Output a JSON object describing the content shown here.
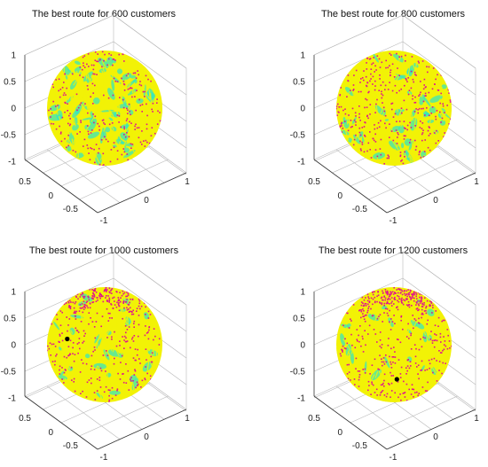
{
  "chart_data": [
    {
      "type": "scatter",
      "title": "The best route for 600 customers",
      "customers": 600,
      "colors": {
        "route": "#f2f206",
        "route_alt": "#2ee6c8",
        "customer": "#e0148e"
      },
      "axes": {
        "z_ticks": [
          "1",
          "0.5",
          "0",
          "-0.5",
          "-1"
        ],
        "y_ticks": [
          "0.5",
          "0",
          "-0.5"
        ],
        "x_ticks": [
          "1",
          "0",
          "-1"
        ]
      },
      "xlim": [
        -1,
        1
      ],
      "ylim": [
        -1,
        1
      ],
      "zlim": [
        -1,
        1
      ],
      "grid": true,
      "depot": null
    },
    {
      "type": "scatter",
      "title": "The best route for 800 customers",
      "customers": 800,
      "colors": {
        "route": "#f2f206",
        "route_alt": "#2ee6c8",
        "customer": "#e0148e"
      },
      "axes": {
        "z_ticks": [
          "1",
          "0.5",
          "0",
          "-0.5",
          "-1"
        ],
        "y_ticks": [
          "0.5",
          "0",
          "-0.5"
        ],
        "x_ticks": [
          "1",
          "0",
          "-1"
        ]
      },
      "xlim": [
        -1,
        1
      ],
      "ylim": [
        -1,
        1
      ],
      "zlim": [
        -1,
        1
      ],
      "grid": true,
      "depot": null
    },
    {
      "type": "scatter",
      "title": "The best route for 1000 customers",
      "customers": 1000,
      "colors": {
        "route": "#f2f206",
        "route_alt": "#2ee6c8",
        "customer": "#e0148e"
      },
      "axes": {
        "z_ticks": [
          "1",
          "0.5",
          "0",
          "-0.5",
          "-1"
        ],
        "y_ticks": [
          "0.5",
          "0",
          "-0.5"
        ],
        "x_ticks": [
          "1",
          "0",
          "-1"
        ]
      },
      "xlim": [
        -1,
        1
      ],
      "ylim": [
        -1,
        1
      ],
      "zlim": [
        -1,
        1
      ],
      "grid": true,
      "depot": {
        "u": -0.65,
        "v": 0.1,
        "color": "#000000"
      }
    },
    {
      "type": "scatter",
      "title": "The best route for 1200 customers",
      "customers": 1200,
      "colors": {
        "route": "#f2f206",
        "route_alt": "#2ee6c8",
        "customer": "#e0148e"
      },
      "axes": {
        "z_ticks": [
          "1",
          "0.5",
          "0",
          "-0.5",
          "-1"
        ],
        "y_ticks": [
          "0.5",
          "0",
          "-0.5"
        ],
        "x_ticks": [
          "1",
          "0",
          "-1"
        ]
      },
      "xlim": [
        -1,
        1
      ],
      "ylim": [
        -1,
        1
      ],
      "zlim": [
        -1,
        1
      ],
      "grid": true,
      "depot": {
        "u": 0.05,
        "v": -0.6,
        "color": "#000000"
      }
    }
  ]
}
